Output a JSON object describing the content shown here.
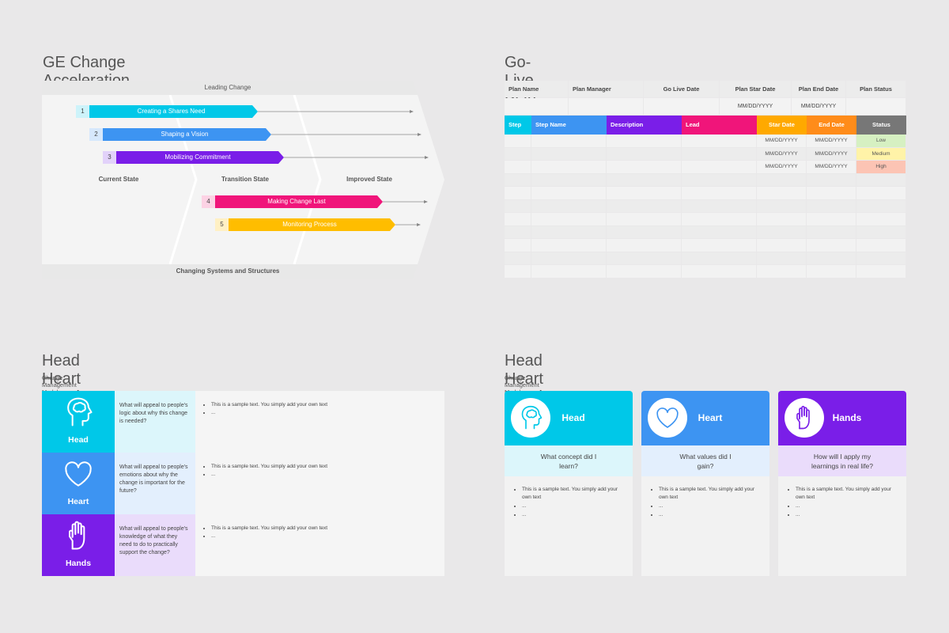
{
  "slides": [
    {
      "title": "GE Change Acceleration Process (CAP)",
      "top_band": "Leading Change",
      "bottom_band": "Changing Systems and Structures",
      "states": [
        "Current State",
        "Transition State",
        "Improved State"
      ],
      "steps": [
        {
          "number": "1",
          "label": "Creating a Shares Need"
        },
        {
          "number": "2",
          "label": "Shaping a Vision"
        },
        {
          "number": "3",
          "label": "Mobilizing Commitment"
        },
        {
          "number": "4",
          "label": "Making Change Last"
        },
        {
          "number": "5",
          "label": "Monitoring Process"
        }
      ]
    },
    {
      "title": "Go-Live Plan",
      "plan_headers": [
        "Plan Name",
        "Plan Manager",
        "Go Live Date",
        "Plan Star Date",
        "Plan End Date",
        "Plan Status"
      ],
      "plan_dates": [
        "MM/DD/YYYY",
        "MM/DD/YYYY"
      ],
      "step_headers": [
        "Step",
        "Step Name",
        "Description",
        "Lead",
        "Star Date",
        "End Date",
        "Status"
      ],
      "rows": [
        {
          "start": "MM/DD/YYYY",
          "end": "MM/DD/YYYY",
          "status": "Low"
        },
        {
          "start": "MM/DD/YYYY",
          "end": "MM/DD/YYYY",
          "status": "Medium"
        },
        {
          "start": "MM/DD/YYYY",
          "end": "MM/DD/YYYY",
          "status": "High"
        }
      ]
    },
    {
      "title": "Head Heart Hands Model",
      "subtitle": "Change Management Model",
      "rows": [
        {
          "label": "Head",
          "question": "What will appeal to people's logic about why this change is needed?",
          "bullets": [
            "This is a sample text. You simply add your own text",
            "..."
          ]
        },
        {
          "label": "Heart",
          "question": "What will appeal to people's emotions about why the change is important for the future?",
          "bullets": [
            "This is a sample text. You simply add your own text",
            "..."
          ]
        },
        {
          "label": "Hands",
          "question": "What will appeal to people's knowledge of what they need to do to practically support the change?",
          "bullets": [
            "This is a sample text. You simply add your own text",
            "..."
          ]
        }
      ]
    },
    {
      "title": "Head Heart Hands Model",
      "subtitle": "Change Management Model",
      "cards": [
        {
          "label": "Head",
          "question": "What concept did I learn?",
          "bullets": [
            "This is a sample text. You simply add your own text",
            "...",
            "..."
          ]
        },
        {
          "label": "Heart",
          "question": "What values did I gain?",
          "bullets": [
            "This is a sample text. You simply add your own text",
            "...",
            "..."
          ]
        },
        {
          "label": "Hands",
          "question": "How will I apply my learnings in real life?",
          "bullets": [
            "This is a sample text. You simply add your own text",
            "...",
            "..."
          ]
        }
      ]
    }
  ]
}
